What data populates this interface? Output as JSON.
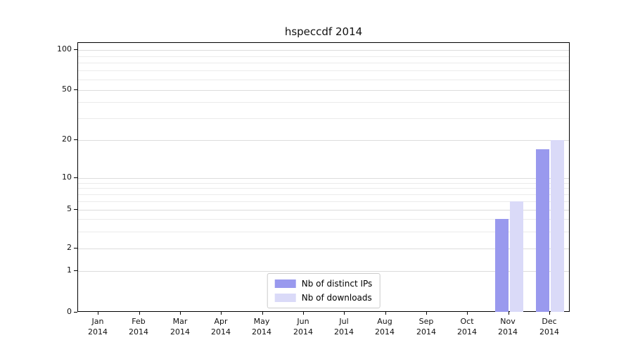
{
  "title": "hspeccdf 2014",
  "chart_data": {
    "type": "bar",
    "title": "hspeccdf 2014",
    "categories": [
      "Jan",
      "Feb",
      "Mar",
      "Apr",
      "May",
      "Jun",
      "Jul",
      "Aug",
      "Sep",
      "Oct",
      "Nov",
      "Dec"
    ],
    "year": "2014",
    "series": [
      {
        "name": "Nb of distinct IPs",
        "color": "#9999ee",
        "values": [
          0,
          0,
          0,
          0,
          0,
          0,
          0,
          0,
          0,
          0,
          4,
          17
        ]
      },
      {
        "name": "Nb of downloads",
        "color": "#dadaf8",
        "values": [
          0,
          0,
          0,
          0,
          0,
          0,
          0,
          0,
          0,
          0,
          6,
          20
        ]
      }
    ],
    "yticks": [
      0,
      1,
      2,
      5,
      10,
      20,
      50,
      100
    ],
    "yscale": "log",
    "ylim": [
      0,
      100
    ],
    "grid": true,
    "legend_position": "lower center inside"
  }
}
